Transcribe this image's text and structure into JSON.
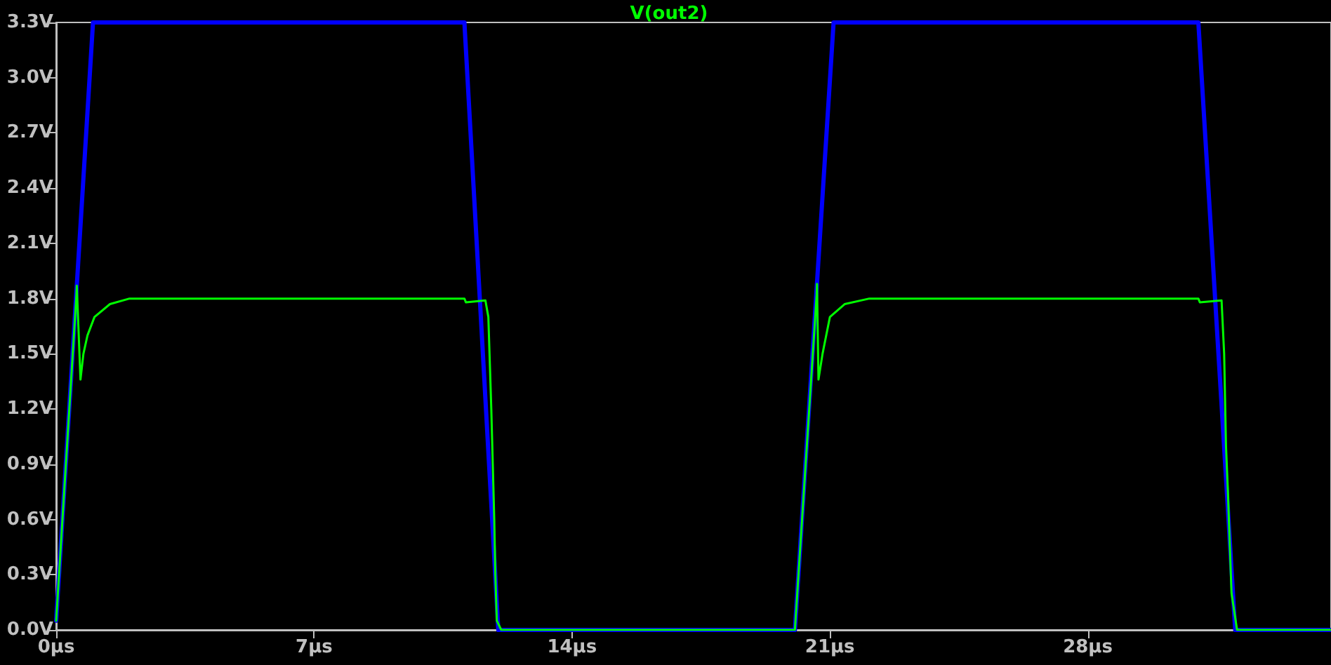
{
  "chart_data": {
    "type": "line",
    "xlim": [
      0,
      34.6
    ],
    "ylim": [
      0,
      3.3
    ],
    "xticks": [
      {
        "value": 0,
        "label": "0µs"
      },
      {
        "value": 7,
        "label": "7µs"
      },
      {
        "value": 14,
        "label": "14µs"
      },
      {
        "value": 21,
        "label": "21µs"
      },
      {
        "value": 28,
        "label": "28µs"
      }
    ],
    "yticks": [
      {
        "value": 0,
        "label": "0.0V"
      },
      {
        "value": 0.3,
        "label": "0.3V"
      },
      {
        "value": 0.6,
        "label": "0.6V"
      },
      {
        "value": 0.9,
        "label": "0.9V"
      },
      {
        "value": 1.2,
        "label": "1.2V"
      },
      {
        "value": 1.5,
        "label": "1.5V"
      },
      {
        "value": 1.8,
        "label": "1.8V"
      },
      {
        "value": 2.1,
        "label": "2.1V"
      },
      {
        "value": 2.4,
        "label": "2.4V"
      },
      {
        "value": 2.7,
        "label": "2.7V"
      },
      {
        "value": 3.0,
        "label": "3.0V"
      },
      {
        "value": 3.3,
        "label": "3.3V"
      }
    ],
    "grid": false,
    "legend": "top",
    "marker": "none",
    "line_style": "solid",
    "series": [
      {
        "color": "#0000ff",
        "x": [
          0,
          1.0,
          11.08,
          12.0,
          20.05,
          21.1,
          31.0,
          32.0,
          34.6
        ],
        "values": [
          0.05,
          3.3,
          3.3,
          0,
          0,
          3.3,
          3.3,
          0,
          0
        ]
      },
      {
        "name": "V(out2)",
        "color": "#00ff00",
        "x": [
          0,
          0.55,
          0.56,
          0.66,
          0.74,
          0.85,
          1.04,
          1.46,
          1.99,
          11.08,
          11.12,
          11.65,
          11.73,
          11.81,
          11.85,
          11.89,
          11.92,
          11.96,
          12.08,
          20.05,
          20.64,
          20.65,
          20.69,
          20.8,
          21.0,
          21.4,
          22.07,
          31.0,
          31.04,
          31.63,
          31.7,
          31.75,
          31.8,
          31.9,
          32.05,
          34.6
        ],
        "values": [
          0.05,
          1.82,
          1.87,
          1.36,
          1.5,
          1.6,
          1.7,
          1.77,
          1.8,
          1.8,
          1.78,
          1.79,
          1.7,
          1.2,
          0.9,
          0.6,
          0.3,
          0.05,
          0,
          0,
          1.82,
          1.88,
          1.36,
          1.5,
          1.7,
          1.77,
          1.8,
          1.8,
          1.78,
          1.79,
          1.5,
          1.0,
          0.76,
          0.2,
          0,
          0
        ]
      }
    ]
  }
}
